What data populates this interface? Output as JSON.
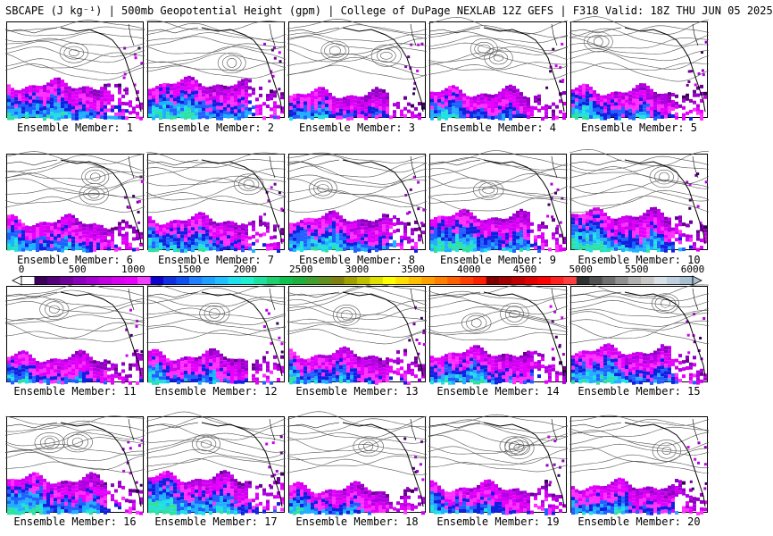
{
  "header": {
    "title": "SBCAPE (J kg⁻¹) | 500mb Geopotential Height (gpm) | College of DuPage NEXLAB 12Z GEFS | F318 Valid: 18Z THU JUN 05 2025"
  },
  "colorbar": {
    "ticks": [
      "0",
      "500",
      "1000",
      "1500",
      "2000",
      "2500",
      "3000",
      "3500",
      "4000",
      "4500",
      "5000",
      "5500",
      "6000"
    ],
    "min": 0,
    "max": 6000,
    "colors": [
      "#ffffff",
      "#3a005a",
      "#55007a",
      "#70009a",
      "#8b00ba",
      "#a600d0",
      "#c000e0",
      "#d800f0",
      "#e800ff",
      "#f040ff",
      "#1000d0",
      "#1030e0",
      "#1050f0",
      "#2080ff",
      "#20a0ff",
      "#20c0ff",
      "#20e0f0",
      "#20f0d0",
      "#20e0a0",
      "#20d070",
      "#10c050",
      "#20b040",
      "#40a030",
      "#609020",
      "#808010",
      "#a0a000",
      "#c0c000",
      "#e0e000",
      "#ffff00",
      "#ffe000",
      "#ffc000",
      "#ffa000",
      "#ff8000",
      "#ff6000",
      "#ff4000",
      "#ff2000",
      "#800000",
      "#a00000",
      "#c00000",
      "#e00000",
      "#ff0000",
      "#ff2020",
      "#ff4040",
      "#303030",
      "#505050",
      "#707070",
      "#909090",
      "#b0b0b0",
      "#c8c8c8",
      "#d8e0e8",
      "#c0d0e0",
      "#a8c0d0"
    ]
  },
  "panels": [
    {
      "label": "Ensemble Member: 1"
    },
    {
      "label": "Ensemble Member: 2"
    },
    {
      "label": "Ensemble Member: 3"
    },
    {
      "label": "Ensemble Member: 4"
    },
    {
      "label": "Ensemble Member: 5"
    },
    {
      "label": "Ensemble Member: 6"
    },
    {
      "label": "Ensemble Member: 7"
    },
    {
      "label": "Ensemble Member: 8"
    },
    {
      "label": "Ensemble Member: 9"
    },
    {
      "label": "Ensemble Member: 10"
    },
    {
      "label": "Ensemble Member: 11"
    },
    {
      "label": "Ensemble Member: 12"
    },
    {
      "label": "Ensemble Member: 13"
    },
    {
      "label": "Ensemble Member: 14"
    },
    {
      "label": "Ensemble Member: 15"
    },
    {
      "label": "Ensemble Member: 16"
    },
    {
      "label": "Ensemble Member: 17"
    },
    {
      "label": "Ensemble Member: 18"
    },
    {
      "label": "Ensemble Member: 19"
    },
    {
      "label": "Ensemble Member: 20"
    }
  ]
}
